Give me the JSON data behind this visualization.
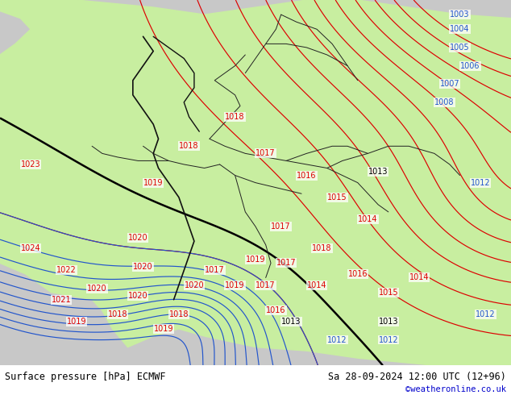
{
  "title_left": "Surface pressure [hPa] ECMWF",
  "title_right": "Sa 28-09-2024 12:00 UTC (12+96)",
  "credit": "©weatheronline.co.uk",
  "credit_color": "#0000cc",
  "sea_color": "#c8c8c8",
  "land_color": "#c8eea0",
  "border_color": "#222222",
  "label_font_size": 7.0,
  "footer_font_size": 8.5,
  "contour_red_color": "#dd0000",
  "contour_blue_color": "#2255cc",
  "contour_black_color": "#000000",
  "figsize": [
    6.34,
    4.9
  ],
  "dpi": 100
}
